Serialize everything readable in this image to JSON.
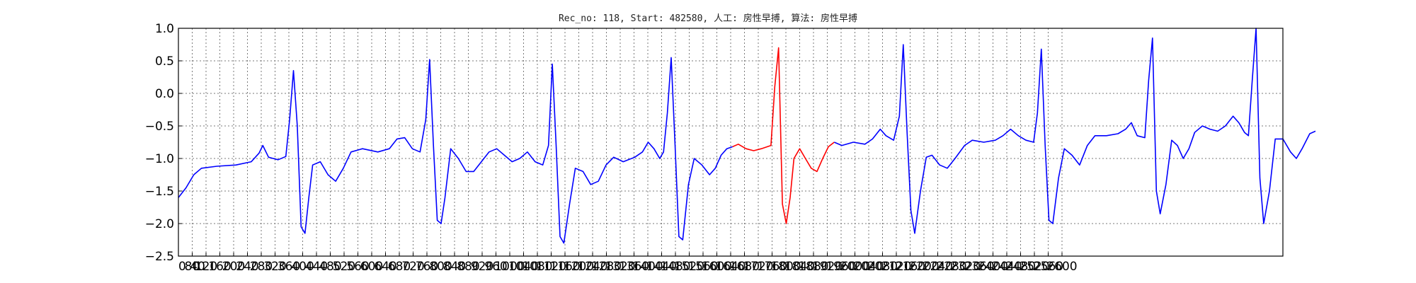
{
  "chart_data": {
    "type": "line",
    "title": "Rec_no: 118, Start: 482580, 人工: 房性早搏, 算法: 房性早搏",
    "xlabel": "",
    "ylabel": "",
    "xlim": [
      0,
      5760
    ],
    "ylim": [
      -2.5,
      1.0
    ],
    "yticks": [
      1.0,
      0.5,
      0.0,
      -0.5,
      -1.0,
      -1.5,
      -2.0,
      -2.5
    ],
    "ytick_labels": [
      "1.0",
      "0.5",
      "0.0",
      "−0.5",
      "−1.0",
      "−1.5",
      "−2.0",
      "−2.5"
    ],
    "xtick_step": 72,
    "xtick_labels": [
      "0 40",
      "80",
      "120",
      "160",
      "200",
      "240",
      "280",
      "320",
      "360",
      "400",
      "440",
      "480",
      "520",
      "560",
      "600",
      "640",
      "680",
      "720",
      "760",
      "800",
      "840",
      "880",
      "920",
      "960",
      "1000",
      "1040",
      "1080",
      "1120",
      "1160",
      "1200",
      "1240",
      "1280",
      "1320",
      "1360",
      "1400",
      "1440",
      "1480",
      "1520",
      "1560",
      "1600",
      "1640",
      "1680",
      "1720",
      "1760",
      "1800",
      "1840",
      "1880",
      "1920",
      "1960",
      "2000",
      "2040",
      "2080",
      "2120",
      "2160",
      "2200",
      "2240",
      "2280",
      "2320",
      "2360",
      "2400",
      "2440",
      "2480",
      "2520",
      "2560",
      "2600"
    ],
    "grid": true,
    "series": [
      {
        "color": "#0000ff",
        "points": [
          [
            0,
            -1.6
          ],
          [
            40,
            -1.45
          ],
          [
            80,
            -1.25
          ],
          [
            120,
            -1.15
          ],
          [
            200,
            -1.12
          ],
          [
            300,
            -1.1
          ],
          [
            380,
            -1.05
          ],
          [
            420,
            -0.92
          ],
          [
            440,
            -0.8
          ],
          [
            470,
            -0.98
          ],
          [
            520,
            -1.02
          ],
          [
            560,
            -0.97
          ],
          [
            580,
            -0.4
          ],
          [
            600,
            0.35
          ],
          [
            620,
            -0.5
          ],
          [
            640,
            -2.05
          ],
          [
            660,
            -2.15
          ],
          [
            680,
            -1.6
          ],
          [
            700,
            -1.1
          ],
          [
            740,
            -1.05
          ],
          [
            780,
            -1.25
          ],
          [
            820,
            -1.35
          ],
          [
            860,
            -1.15
          ],
          [
            900,
            -0.9
          ],
          [
            960,
            -0.85
          ],
          [
            1040,
            -0.9
          ],
          [
            1100,
            -0.85
          ],
          [
            1140,
            -0.7
          ],
          [
            1180,
            -0.68
          ],
          [
            1220,
            -0.85
          ],
          [
            1260,
            -0.9
          ],
          [
            1290,
            -0.4
          ],
          [
            1310,
            0.52
          ],
          [
            1330,
            -0.8
          ],
          [
            1350,
            -1.95
          ],
          [
            1370,
            -2.0
          ],
          [
            1390,
            -1.6
          ],
          [
            1420,
            -0.85
          ],
          [
            1460,
            -1.0
          ],
          [
            1500,
            -1.2
          ],
          [
            1540,
            -1.2
          ],
          [
            1580,
            -1.05
          ],
          [
            1620,
            -0.9
          ],
          [
            1660,
            -0.85
          ],
          [
            1700,
            -0.95
          ],
          [
            1740,
            -1.05
          ],
          [
            1780,
            -1.0
          ],
          [
            1820,
            -0.9
          ],
          [
            1860,
            -1.05
          ],
          [
            1900,
            -1.1
          ],
          [
            1930,
            -0.8
          ],
          [
            1950,
            0.45
          ],
          [
            1970,
            -0.8
          ],
          [
            1990,
            -2.2
          ],
          [
            2010,
            -2.3
          ],
          [
            2040,
            -1.7
          ],
          [
            2070,
            -1.15
          ],
          [
            2110,
            -1.2
          ],
          [
            2150,
            -1.4
          ],
          [
            2190,
            -1.35
          ],
          [
            2230,
            -1.1
          ],
          [
            2270,
            -0.98
          ],
          [
            2320,
            -1.05
          ],
          [
            2380,
            -0.98
          ],
          [
            2420,
            -0.9
          ],
          [
            2450,
            -0.75
          ],
          [
            2480,
            -0.85
          ],
          [
            2510,
            -1.0
          ],
          [
            2530,
            -0.9
          ],
          [
            2550,
            -0.3
          ],
          [
            2570,
            0.55
          ],
          [
            2590,
            -0.8
          ],
          [
            2610,
            -2.2
          ],
          [
            2630,
            -2.25
          ],
          [
            2660,
            -1.4
          ],
          [
            2690,
            -1.0
          ],
          [
            2730,
            -1.1
          ],
          [
            2770,
            -1.25
          ],
          [
            2800,
            -1.15
          ],
          [
            2830,
            -0.95
          ],
          [
            2860,
            -0.85
          ],
          [
            2890,
            -0.82
          ]
        ]
      },
      {
        "color": "#ff0000",
        "points": [
          [
            2890,
            -0.82
          ],
          [
            2920,
            -0.78
          ],
          [
            2960,
            -0.85
          ],
          [
            3000,
            -0.88
          ],
          [
            3040,
            -0.85
          ],
          [
            3090,
            -0.8
          ],
          [
            3110,
            0.1
          ],
          [
            3130,
            0.7
          ],
          [
            3150,
            -1.7
          ],
          [
            3170,
            -2.0
          ],
          [
            3190,
            -1.6
          ],
          [
            3210,
            -1.0
          ],
          [
            3240,
            -0.85
          ],
          [
            3270,
            -1.0
          ],
          [
            3300,
            -1.15
          ],
          [
            3330,
            -1.2
          ],
          [
            3360,
            -1.0
          ],
          [
            3390,
            -0.82
          ],
          [
            3420,
            -0.75
          ]
        ]
      },
      {
        "color": "#0000ff",
        "points": [
          [
            3420,
            -0.75
          ],
          [
            3460,
            -0.8
          ],
          [
            3520,
            -0.75
          ],
          [
            3580,
            -0.78
          ],
          [
            3620,
            -0.7
          ],
          [
            3660,
            -0.55
          ],
          [
            3690,
            -0.65
          ],
          [
            3730,
            -0.72
          ],
          [
            3760,
            -0.35
          ],
          [
            3780,
            0.75
          ],
          [
            3800,
            -0.6
          ],
          [
            3820,
            -1.8
          ],
          [
            3840,
            -2.15
          ],
          [
            3870,
            -1.5
          ],
          [
            3900,
            -0.98
          ],
          [
            3930,
            -0.95
          ],
          [
            3970,
            -1.1
          ],
          [
            4010,
            -1.15
          ],
          [
            4050,
            -1.0
          ],
          [
            4100,
            -0.8
          ],
          [
            4140,
            -0.72
          ],
          [
            4200,
            -0.75
          ],
          [
            4260,
            -0.72
          ],
          [
            4300,
            -0.65
          ],
          [
            4340,
            -0.55
          ],
          [
            4380,
            -0.65
          ],
          [
            4420,
            -0.72
          ],
          [
            4460,
            -0.75
          ],
          [
            4480,
            -0.3
          ],
          [
            4500,
            0.68
          ],
          [
            4520,
            -0.8
          ],
          [
            4540,
            -1.95
          ],
          [
            4560,
            -2.0
          ],
          [
            4590,
            -1.3
          ],
          [
            4620,
            -0.85
          ],
          [
            4660,
            -0.95
          ],
          [
            4700,
            -1.1
          ],
          [
            4740,
            -0.8
          ],
          [
            4780,
            -0.65
          ],
          [
            4840,
            -0.65
          ],
          [
            4900,
            -0.62
          ],
          [
            4940,
            -0.55
          ],
          [
            4970,
            -0.45
          ],
          [
            5000,
            -0.65
          ],
          [
            5040,
            -0.68
          ],
          [
            5060,
            0.2
          ],
          [
            5080,
            0.85
          ],
          [
            5100,
            -1.5
          ],
          [
            5120,
            -1.85
          ],
          [
            5150,
            -1.4
          ],
          [
            5180,
            -0.72
          ],
          [
            5210,
            -0.8
          ],
          [
            5240,
            -1.0
          ],
          [
            5270,
            -0.85
          ],
          [
            5300,
            -0.6
          ],
          [
            5340,
            -0.5
          ],
          [
            5380,
            -0.55
          ],
          [
            5420,
            -0.58
          ],
          [
            5460,
            -0.5
          ],
          [
            5500,
            -0.35
          ],
          [
            5530,
            -0.45
          ],
          [
            5560,
            -0.6
          ],
          [
            5580,
            -0.65
          ],
          [
            5600,
            0.2
          ],
          [
            5620,
            1.0
          ],
          [
            5640,
            -1.3
          ],
          [
            5660,
            -2.0
          ],
          [
            5690,
            -1.5
          ],
          [
            5720,
            -0.7
          ],
          [
            5760,
            -0.7
          ],
          [
            5800,
            -0.9
          ],
          [
            5830,
            -1.0
          ],
          [
            5860,
            -0.85
          ],
          [
            5900,
            -0.62
          ],
          [
            5930,
            -0.58
          ]
        ]
      }
    ]
  }
}
